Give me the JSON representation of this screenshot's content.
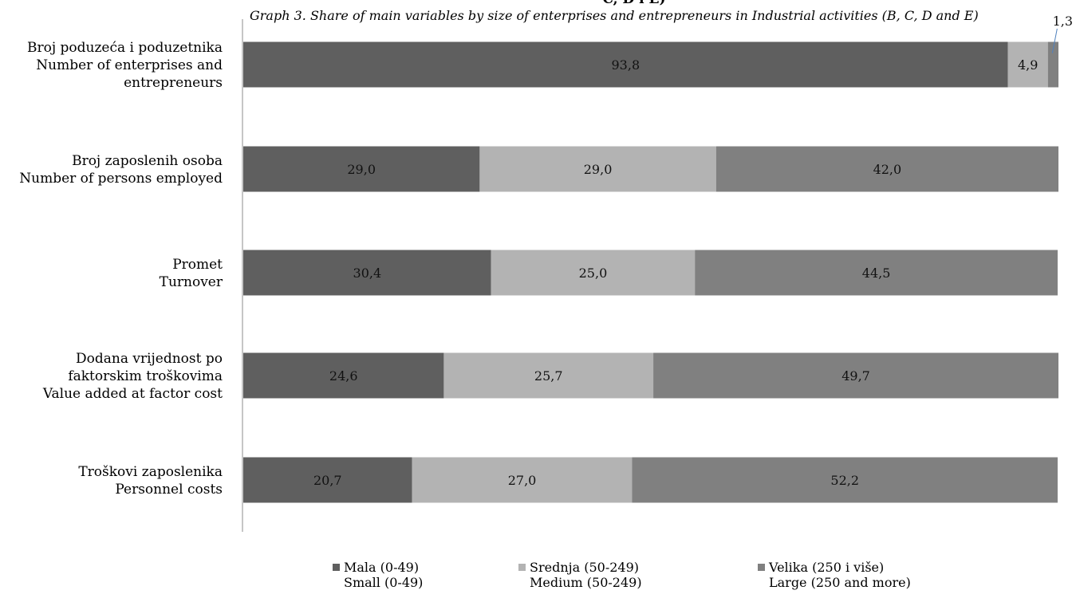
{
  "title": "C, D i E)",
  "subtitle": "Graph 3.  Share of main variables by size of enterprises and entrepreneurs in Industrial activities (B, C, D and E)",
  "chart_data": {
    "type": "bar",
    "orientation": "horizontal",
    "stacked": true,
    "percent": true,
    "categories": [
      [
        "Broj poduzeća i poduzetnika",
        "Number of enterprises and",
        "entrepreneurs"
      ],
      [
        "Broj zaposlenih osoba",
        "Number of persons employed"
      ],
      [
        "Promet",
        "Turnover"
      ],
      [
        "Dodana vrijednost po",
        "faktorskim troškovima",
        "Value added at factor cost"
      ],
      [
        "Troškovi zaposlenika",
        "Personnel costs"
      ]
    ],
    "series": [
      {
        "name": [
          "Mala (0-49)",
          "Small (0-49)"
        ],
        "color": "#5f5f5f",
        "values": [
          93.8,
          29.0,
          30.4,
          24.6,
          20.7
        ],
        "labels": [
          "93,8",
          "29,0",
          "30,4",
          "24,6",
          "20,7"
        ]
      },
      {
        "name": [
          "Srednja (50-249)",
          "Medium (50-249)"
        ],
        "color": "#b3b3b3",
        "values": [
          4.9,
          29.0,
          25.0,
          25.7,
          27.0
        ],
        "labels": [
          "4,9",
          "29,0",
          "25,0",
          "25,7",
          "27,0"
        ]
      },
      {
        "name": [
          "Velika (250 i više)",
          "Large (250 and more)"
        ],
        "color": "#808080",
        "values": [
          1.3,
          42.0,
          44.5,
          49.7,
          52.2
        ],
        "labels": [
          "1,3",
          "42,0",
          "44,5",
          "49,7",
          "52,2"
        ]
      }
    ],
    "xlim": [
      0,
      100
    ],
    "grid": false,
    "legend_position": "bottom"
  }
}
